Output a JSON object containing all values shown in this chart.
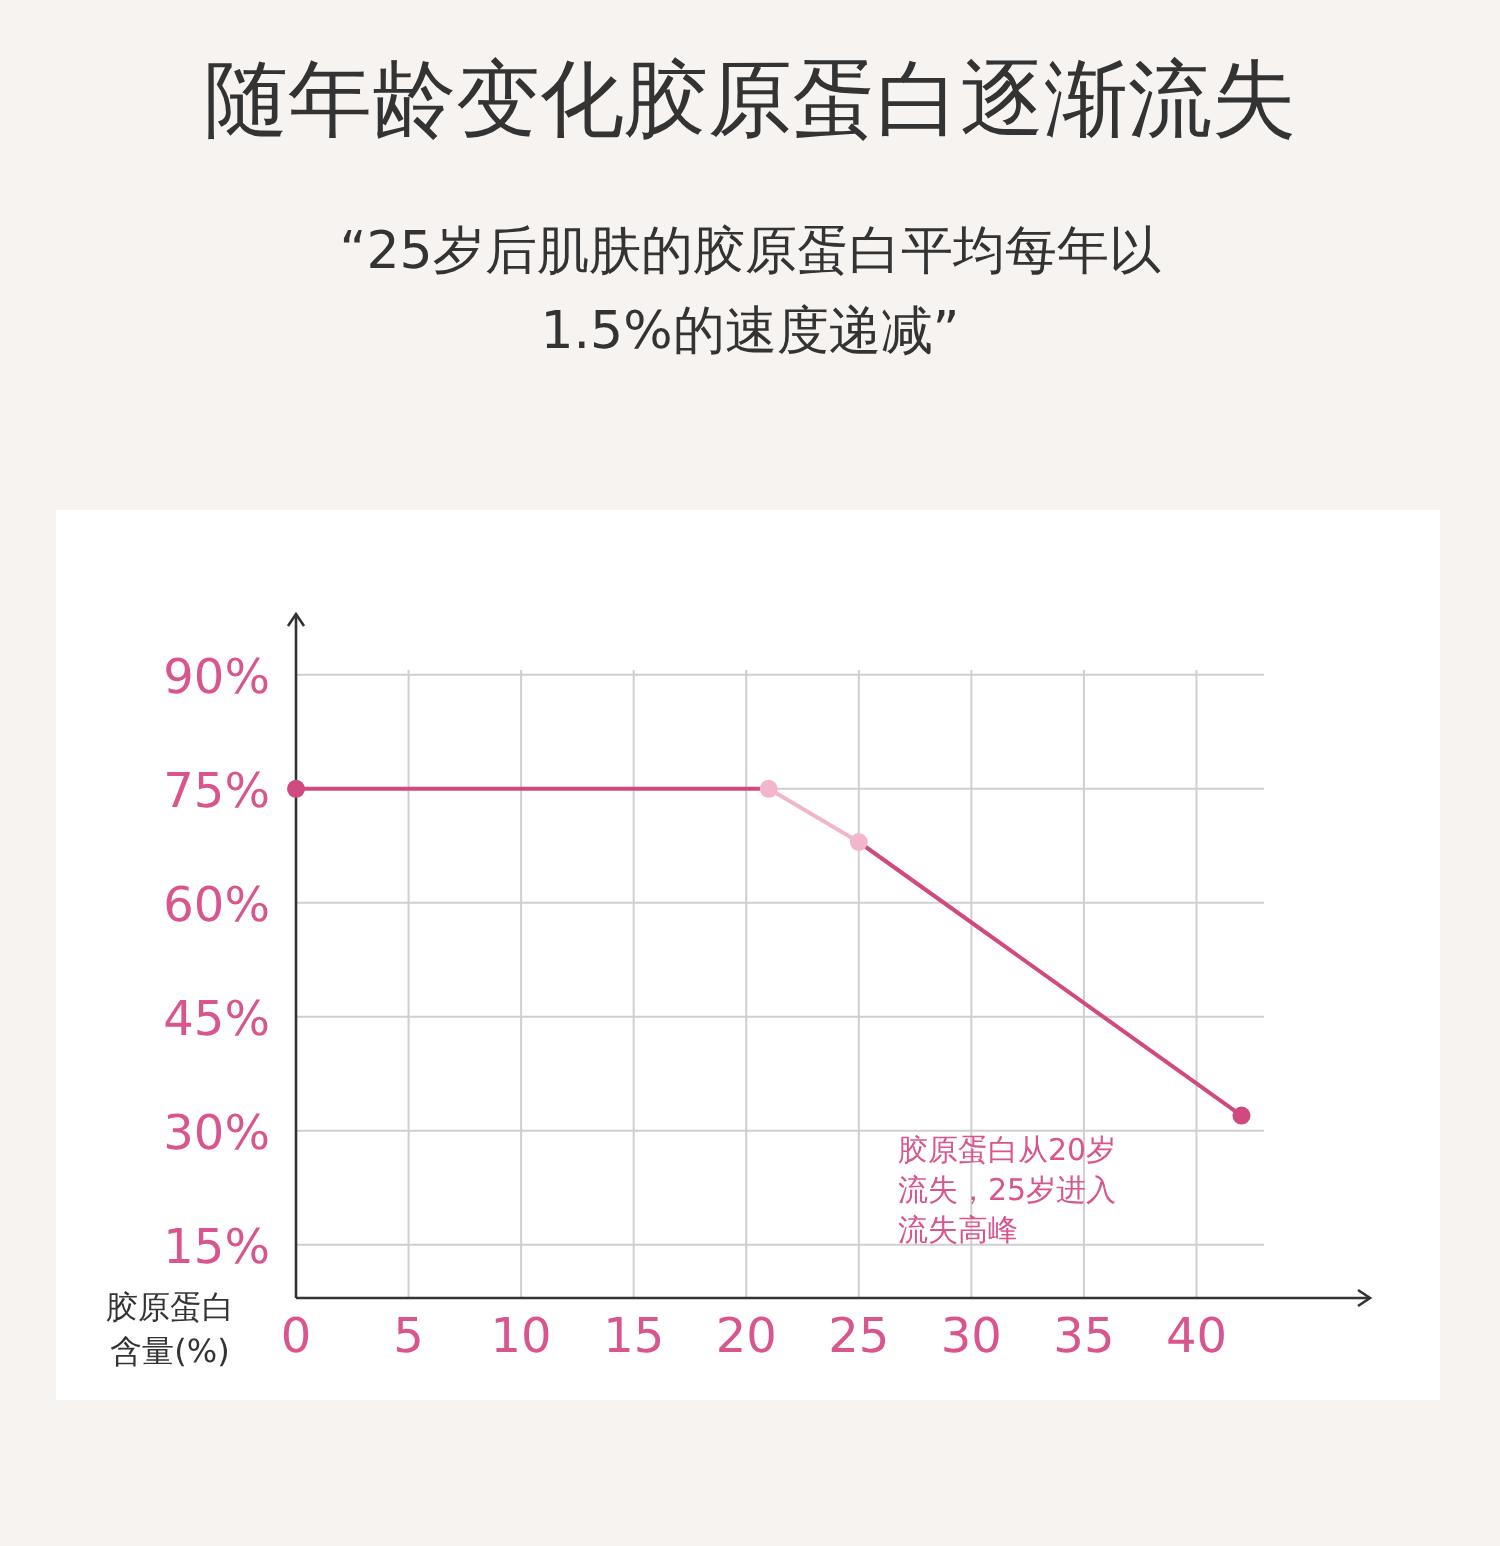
{
  "chart_data": {
    "type": "line",
    "title": "随年龄变化胶原蛋白逐渐流失",
    "subtitle": "“25岁后肌肤的胶原蛋白平均每年以1.5%的速度递减”",
    "ylabel": "胶原蛋白含量(%)",
    "annotations": [
      "胶原蛋白从20岁流失，25岁进入流失高峰"
    ],
    "series": [
      {
        "x": [
          0,
          21
        ],
        "values": [
          75,
          75
        ],
        "color": "#d0497f",
        "colors": [
          "#d0497f",
          null
        ]
      },
      {
        "x": [
          21,
          25
        ],
        "values": [
          75,
          68
        ],
        "color": "#f2b6cc",
        "colors": [
          "#f2b6cc",
          "#f2b6cc"
        ]
      },
      {
        "x": [
          25,
          42
        ],
        "values": [
          68,
          32
        ],
        "color": "#d0497f",
        "colors": [
          null,
          "#d0497f"
        ]
      }
    ],
    "xlim": [
      0,
      43
    ],
    "ylim": [
      8,
      98
    ],
    "xticks": [
      0,
      5,
      10,
      15,
      20,
      25,
      30,
      35,
      40
    ],
    "yticks": [
      {
        "value": 15,
        "label": "15%"
      },
      {
        "value": 30,
        "label": "30%"
      },
      {
        "value": 45,
        "label": "45%"
      },
      {
        "value": 60,
        "label": "60%"
      },
      {
        "value": 75,
        "label": "75%"
      },
      {
        "value": 90,
        "label": "90%"
      }
    ],
    "grid": true,
    "marker": "circle",
    "line_style": "solid"
  }
}
